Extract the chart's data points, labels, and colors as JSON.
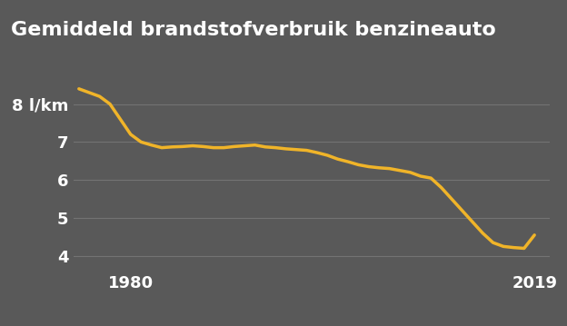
{
  "title": "Gemiddeld brandstofverbruik benzineauto",
  "ylabel": "l/km",
  "background_color": "#595959",
  "line_color": "#f0b429",
  "line_width": 2.5,
  "grid_color": "#737373",
  "text_color": "#ffffff",
  "yticks": [
    4,
    5,
    6,
    7,
    8
  ],
  "ylim": [
    3.7,
    8.85
  ],
  "xlim": [
    1974.5,
    2020.5
  ],
  "xtick_labels": [
    "1980",
    "2019"
  ],
  "xtick_positions": [
    1980,
    2019
  ],
  "x": [
    1975,
    1976,
    1977,
    1978,
    1979,
    1980,
    1981,
    1982,
    1983,
    1984,
    1985,
    1986,
    1987,
    1988,
    1989,
    1990,
    1991,
    1992,
    1993,
    1994,
    1995,
    1996,
    1997,
    1998,
    1999,
    2000,
    2001,
    2002,
    2003,
    2004,
    2005,
    2006,
    2007,
    2008,
    2009,
    2010,
    2011,
    2012,
    2013,
    2014,
    2015,
    2016,
    2017,
    2018,
    2019
  ],
  "y": [
    8.4,
    8.3,
    8.2,
    8.0,
    7.6,
    7.2,
    7.0,
    6.92,
    6.85,
    6.87,
    6.88,
    6.9,
    6.88,
    6.85,
    6.85,
    6.88,
    6.9,
    6.92,
    6.87,
    6.85,
    6.82,
    6.8,
    6.78,
    6.72,
    6.65,
    6.55,
    6.48,
    6.4,
    6.35,
    6.32,
    6.3,
    6.25,
    6.2,
    6.1,
    6.05,
    5.8,
    5.5,
    5.2,
    4.9,
    4.6,
    4.35,
    4.25,
    4.22,
    4.2,
    4.55
  ],
  "title_fontsize": 16,
  "tick_fontsize": 13
}
